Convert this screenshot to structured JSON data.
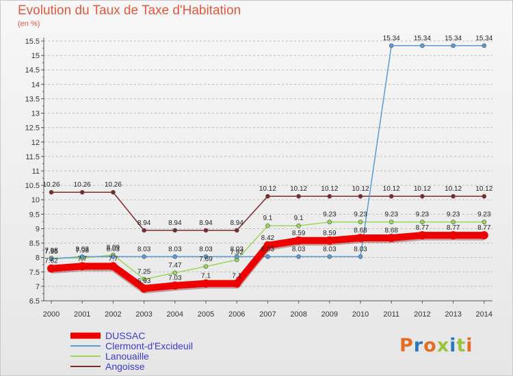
{
  "title": "Evolution du Taux de Taxe d'Habitation",
  "subtitle": "(en %)",
  "logo": "Proxiti",
  "colors": {
    "title": "#e4573c",
    "axis": "#555555",
    "grid": "#bbbbbb",
    "logo_letters": [
      "#e46d25",
      "#2e76c0",
      "#e46d25",
      "#9ac43b",
      "#2e76c0",
      "#9ac43b",
      "#e46d25"
    ]
  },
  "chart_data": {
    "type": "line",
    "title": "Evolution du Taux de Taxe d'Habitation",
    "ylabel": "(en %)",
    "xlabel": "",
    "ylim": [
      6.5,
      15.5
    ],
    "yticks": [
      6.5,
      7,
      7.5,
      8,
      8.5,
      9,
      9.5,
      10,
      10.5,
      11,
      11.5,
      12,
      12.5,
      13,
      13.5,
      14,
      14.5,
      15,
      15.5
    ],
    "grid": "horizontal dashed",
    "legend_position": "bottom-left",
    "categories": [
      "2000",
      "2001",
      "2002",
      "2003",
      "2004",
      "2005",
      "2006",
      "2007",
      "2008",
      "2009",
      "2010",
      "2011",
      "2012",
      "2013",
      "2014"
    ],
    "series": [
      {
        "name": "DUSSAC",
        "color": "#ee0000",
        "legend_text_color": "#3a3acc",
        "width": "thick",
        "values": [
          7.62,
          7.7,
          7.7,
          6.93,
          7.03,
          7.1,
          7.1,
          8.42,
          8.59,
          8.59,
          8.68,
          8.68,
          8.77,
          8.77,
          8.77
        ],
        "labels": [
          "7.62",
          "7.7",
          "7.7",
          "6.93",
          "7.03",
          "7.1",
          "7.1",
          "8.42",
          "8.59",
          "8.59",
          "8.68",
          "8.68",
          "8.77",
          "8.77",
          "8.77"
        ]
      },
      {
        "name": "Clermont-d'Excideuil",
        "color": "#5b9bd5",
        "legend_text_color": "#3a3acc",
        "values": [
          7.95,
          8.03,
          8.03,
          8.03,
          8.03,
          8.03,
          8.03,
          8.03,
          8.03,
          8.03,
          8.03,
          15.34,
          15.34,
          15.34,
          15.34
        ],
        "labels": [
          "7.95",
          "8.03",
          "8.03",
          "8.03",
          "8.03",
          "8.03",
          "8.03",
          "8.03",
          "8.03",
          "8.03",
          "8.03",
          "15.34",
          "15.34",
          "15.34",
          "15.34"
        ]
      },
      {
        "name": "Lanouaille",
        "color": "#9bd65a",
        "legend_text_color": "#3a3acc",
        "values": [
          7.98,
          7.98,
          8.09,
          7.25,
          7.47,
          7.69,
          7.92,
          9.1,
          9.1,
          9.23,
          9.23,
          9.23,
          9.23,
          9.23,
          9.23
        ],
        "labels": [
          "7.98",
          "7.98",
          "8.09",
          "7.25",
          "7.47",
          "7.69",
          "7.92",
          "9.1",
          "9.1",
          "9.23",
          "9.23",
          "9.23",
          "9.23",
          "9.23",
          "9.23"
        ]
      },
      {
        "name": "Angoisse",
        "color": "#7b2a2a",
        "legend_text_color": "#3a3acc",
        "values": [
          10.26,
          10.26,
          10.26,
          8.94,
          8.94,
          8.94,
          8.94,
          10.12,
          10.12,
          10.12,
          10.12,
          10.12,
          10.12,
          10.12,
          10.12
        ],
        "labels": [
          "10.26",
          "10.26",
          "10.26",
          "8.94",
          "8.94",
          "8.94",
          "8.94",
          "10.12",
          "10.12",
          "10.12",
          "10.12",
          "10.12",
          "10.12",
          "10.12",
          "10.12"
        ]
      }
    ]
  }
}
